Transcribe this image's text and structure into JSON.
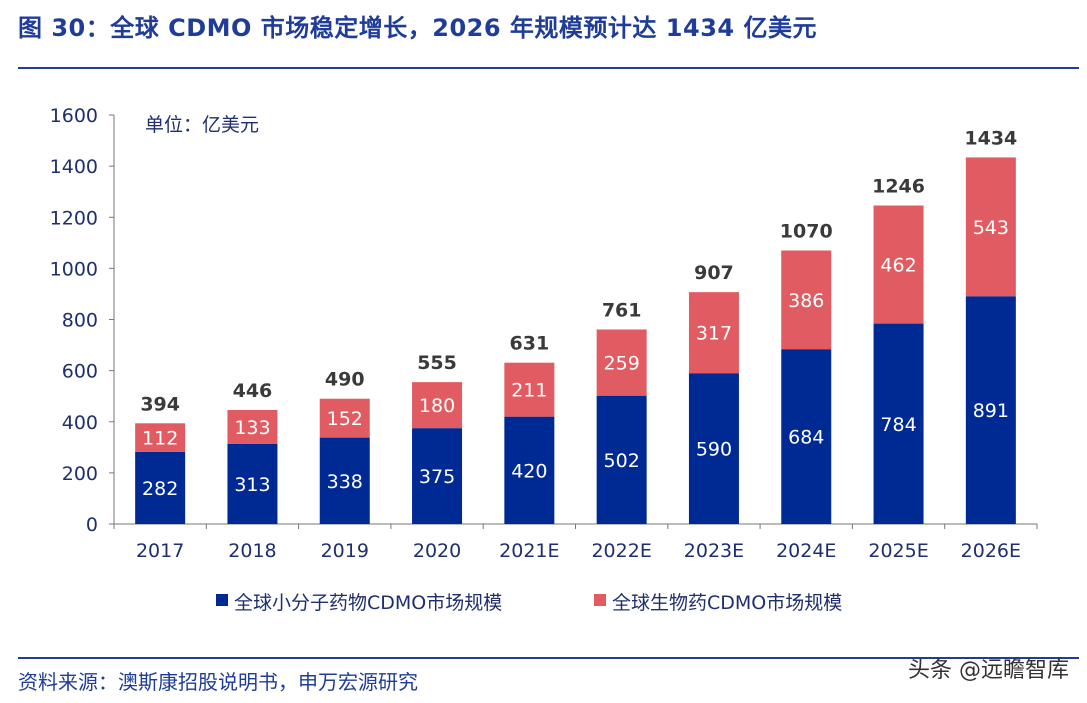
{
  "page": {
    "title": "图 30：全球 CDMO 市场稳定增长，2026 年规模预计达 1434 亿美元",
    "source": "资料来源：澳斯康招股说明书，申万宏源研究",
    "watermark": "头条 @远瞻智库"
  },
  "colors": {
    "title": "#1f3c99",
    "small_molecule": "#002a93",
    "biologics": "#e05c62",
    "axis": "#777777"
  },
  "chart_data": {
    "type": "bar",
    "stacked": true,
    "unit_label": "单位：亿美元",
    "categories": [
      "2017",
      "2018",
      "2019",
      "2020",
      "2021E",
      "2022E",
      "2023E",
      "2024E",
      "2025E",
      "2026E"
    ],
    "series": [
      {
        "name": "全球小分子药物CDMO市场规模",
        "values": [
          282,
          313,
          338,
          375,
          420,
          502,
          590,
          684,
          784,
          891
        ]
      },
      {
        "name": "全球生物药CDMO市场规模",
        "values": [
          112,
          133,
          152,
          180,
          211,
          259,
          317,
          386,
          462,
          543
        ]
      }
    ],
    "totals": [
      394,
      446,
      490,
      555,
      631,
      761,
      907,
      1070,
      1246,
      1434
    ],
    "ylim": [
      0,
      1600
    ],
    "yticks": [
      0,
      200,
      400,
      600,
      800,
      1000,
      1200,
      1400,
      1600
    ],
    "grid": false,
    "legend_position": "bottom"
  }
}
